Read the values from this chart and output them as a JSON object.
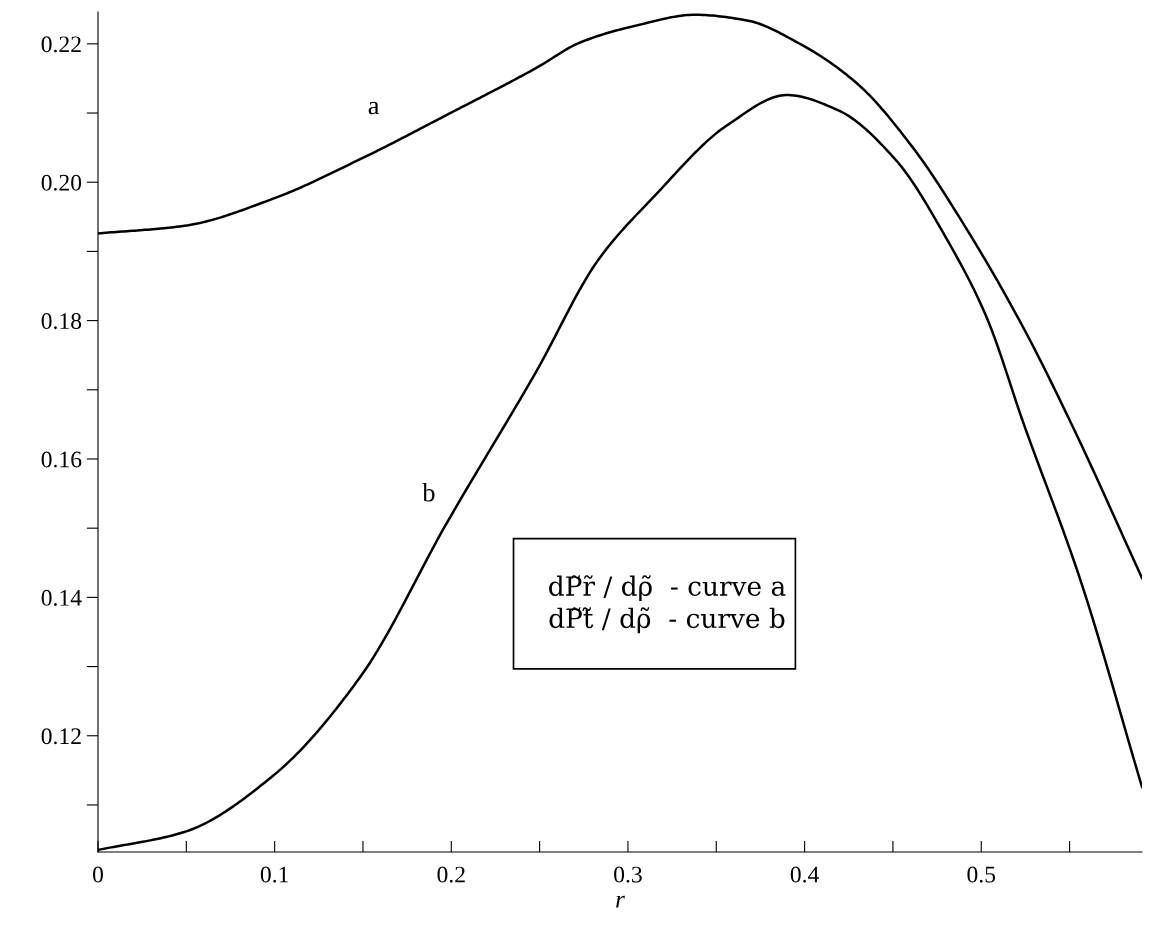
{
  "chart_data": {
    "type": "line",
    "xlabel": "r",
    "series": [
      {
        "color": "#000000",
        "x": [
          0,
          0.049,
          0.099,
          0.149,
          0.198,
          0.248,
          0.273,
          0.304,
          0.338,
          0.367,
          0.398,
          0.43,
          0.461,
          0.493,
          0.524,
          0.551,
          0.591
        ],
        "values": [
          0.1926,
          0.1937,
          0.1976,
          0.2034,
          0.2098,
          0.2165,
          0.2202,
          0.2226,
          0.2242,
          0.2234,
          0.2199,
          0.2142,
          0.2051,
          0.1927,
          0.1789,
          0.1651,
          0.1428
        ]
      },
      {
        "color": "#000000",
        "x": [
          0,
          0.049,
          0.099,
          0.149,
          0.198,
          0.248,
          0.283,
          0.315,
          0.356,
          0.39,
          0.419,
          0.451,
          0.482,
          0.503,
          0.524,
          0.556,
          0.591
        ],
        "values": [
          0.1035,
          0.1061,
          0.1142,
          0.1287,
          0.151,
          0.1726,
          0.1887,
          0.198,
          0.2082,
          0.2126,
          0.2104,
          0.2034,
          0.1911,
          0.1805,
          0.1651,
          0.1426,
          0.1126
        ]
      }
    ],
    "annotations": [
      "a",
      "b",
      "dP̃r̃ / dρ̃  - curve a\ndP̃t̃ / dρ̃  - curve b"
    ],
    "xlim": [
      0,
      0.591
    ],
    "ylim": [
      0.1032,
      0.2246
    ],
    "xticks": [
      0,
      {
        "value": 0.05,
        "label": null
      },
      0.1,
      {
        "value": 0.15,
        "label": null
      },
      0.2,
      {
        "value": 0.25,
        "label": null
      },
      0.3,
      {
        "value": 0.35,
        "label": null
      },
      0.4,
      {
        "value": 0.45,
        "label": null
      },
      0.5,
      {
        "value": 0.55,
        "label": null
      }
    ],
    "yticks": [
      {
        "value": 0.11,
        "label": null
      },
      0.12,
      {
        "value": 0.13,
        "label": null
      },
      0.14,
      {
        "value": 0.15,
        "label": null
      },
      0.16,
      {
        "value": 0.17,
        "label": null
      },
      0.18,
      {
        "value": 0.19,
        "label": null
      },
      {
        "value": 0.2,
        "label": "0.20"
      },
      {
        "value": 0.21,
        "label": null
      },
      0.22
    ],
    "grid": false,
    "legend": false,
    "marker": "none",
    "line_style": "solid"
  }
}
